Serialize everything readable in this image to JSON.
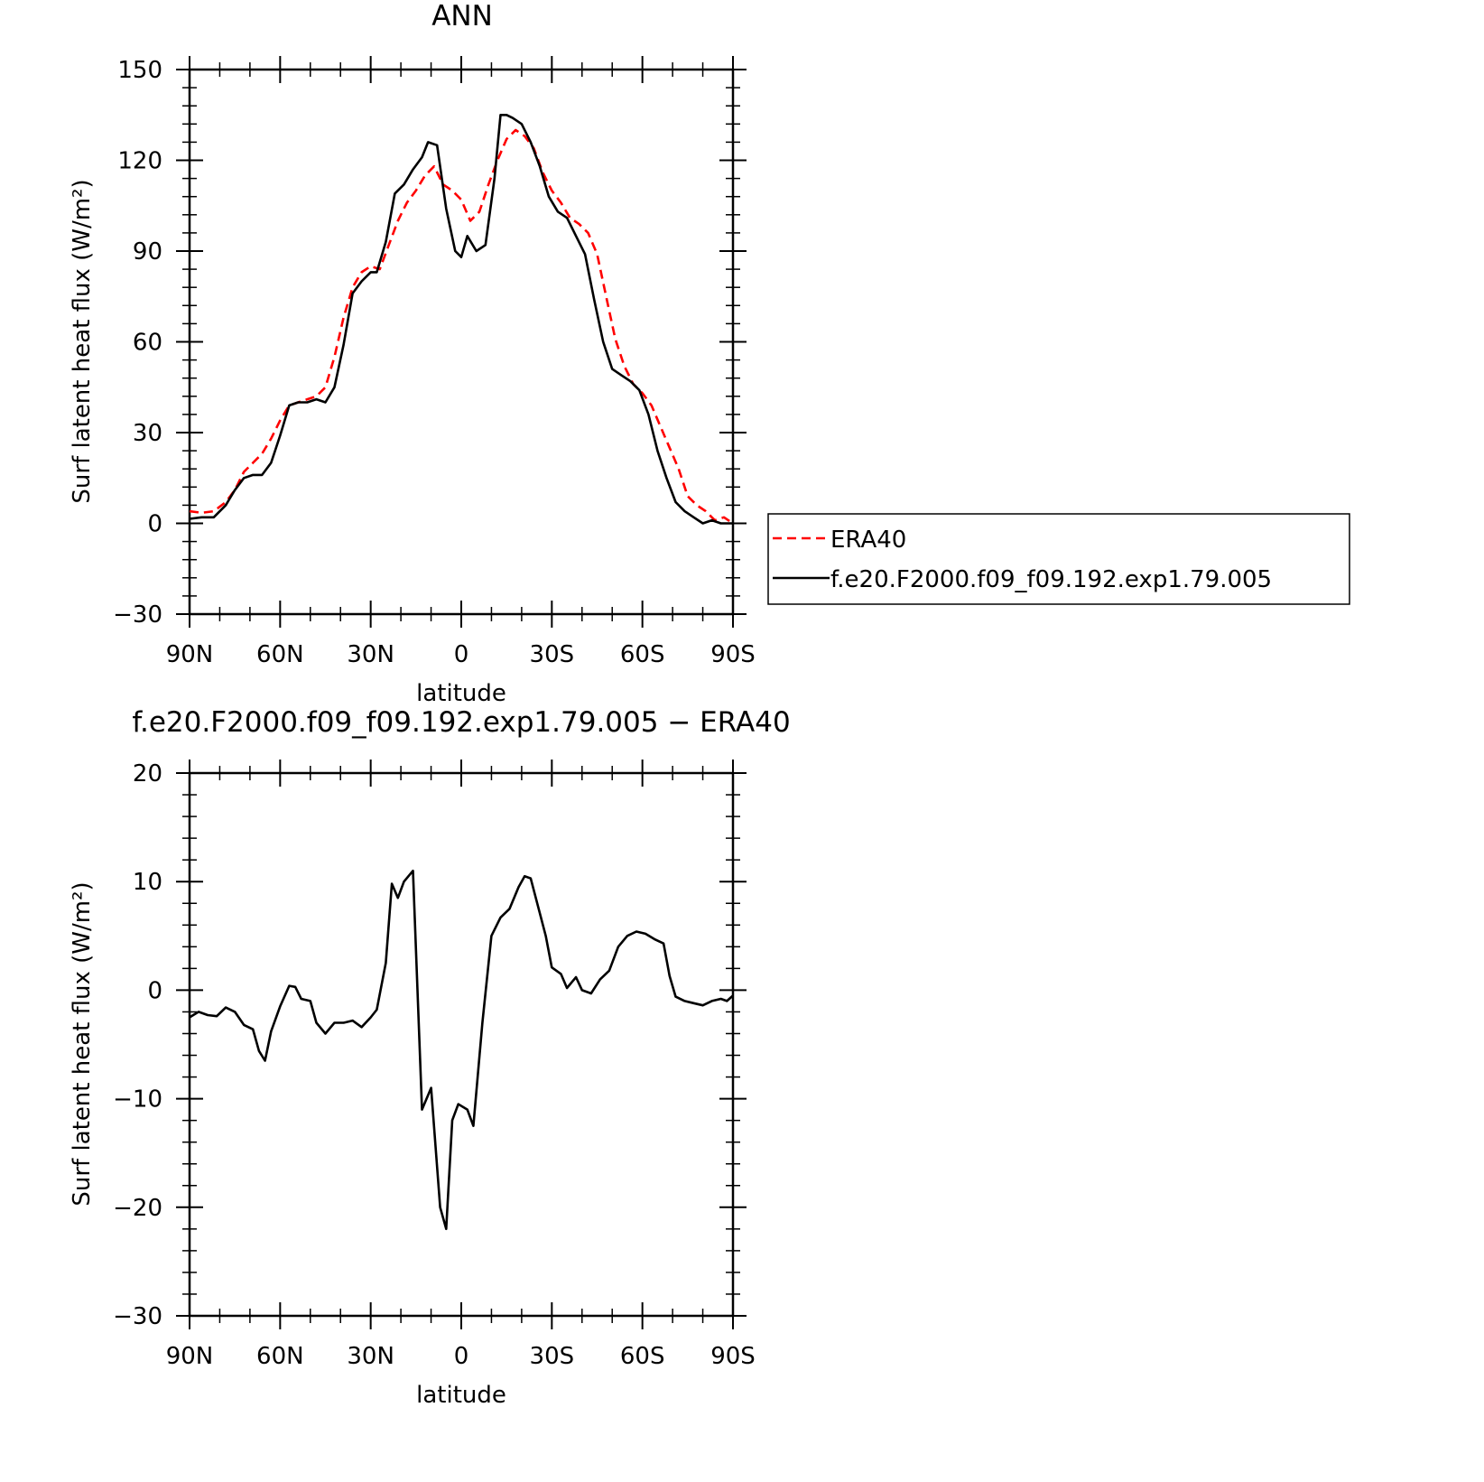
{
  "chart_data": [
    {
      "type": "line",
      "title": "ANN",
      "xlabel": "latitude",
      "ylabel": "Surf latent heat flux (W/m²)",
      "xlim": [
        90,
        -90
      ],
      "ylim": [
        -30,
        150
      ],
      "yticks": [
        150,
        120,
        90,
        60,
        30,
        0,
        -30
      ],
      "ytick_labels": [
        "150",
        "120",
        "90",
        "60",
        "30",
        "0",
        "−30"
      ],
      "xticks": [
        90,
        60,
        30,
        0,
        -30,
        -60,
        -90
      ],
      "xtick_labels": [
        "90N",
        "60N",
        "30N",
        "0",
        "30S",
        "60S",
        "90S"
      ],
      "legend": {
        "placement": "right",
        "entries": [
          "ERA40",
          "f.e20.F2000.f09_f09.192.exp1.79.005"
        ]
      },
      "series": [
        {
          "name": "ERA40",
          "color": "#ff0000",
          "style": "dashed",
          "x": [
            90,
            86,
            82,
            78,
            75,
            72,
            69,
            66,
            63,
            60,
            57,
            54,
            51,
            48,
            45,
            42,
            39,
            36,
            33,
            30,
            27,
            24,
            21,
            18,
            15,
            12,
            9,
            6,
            3,
            0,
            -3,
            -6,
            -9,
            -12,
            -15,
            -18,
            -21,
            -24,
            -27,
            -30,
            -33,
            -36,
            -39,
            -42,
            -45,
            -48,
            -51,
            -54,
            -57,
            -60,
            -63,
            -66,
            -69,
            -72,
            -75,
            -78,
            -81,
            -84,
            -87,
            -90
          ],
          "y": [
            4,
            3.5,
            4,
            7,
            11,
            17,
            20,
            23,
            28,
            34,
            39,
            40,
            41,
            42,
            45,
            55,
            68,
            78,
            83,
            85,
            84,
            92,
            100,
            106,
            110,
            115,
            118,
            112,
            110,
            107,
            100,
            103,
            112,
            120,
            127,
            130,
            128,
            124,
            116,
            110,
            106,
            101,
            99,
            96,
            89,
            75,
            61,
            52,
            46,
            43,
            39,
            32,
            25,
            18,
            9,
            6,
            4,
            1,
            2,
            0
          ]
        },
        {
          "name": "f.e20.F2000.f09_f09.192.exp1.79.005",
          "color": "#000000",
          "style": "solid",
          "x": [
            90,
            86,
            82,
            78,
            75,
            72,
            69,
            66,
            63,
            60,
            57,
            54,
            51,
            48,
            45,
            42,
            39,
            36,
            33,
            30,
            28,
            25,
            22,
            19,
            16,
            13,
            11,
            8,
            5,
            2,
            0,
            -2,
            -5,
            -8,
            -11,
            -13,
            -15,
            -17,
            -20,
            -23,
            -26,
            -29,
            -32,
            -35,
            -38,
            -41,
            -44,
            -47,
            -50,
            -53,
            -56,
            -59,
            -62,
            -65,
            -68,
            -71,
            -74,
            -77,
            -80,
            -83,
            -86,
            -90
          ],
          "y": [
            1.5,
            2,
            2,
            6,
            11,
            15,
            16,
            16,
            20,
            29,
            39,
            40,
            40,
            41,
            40,
            45,
            59,
            76,
            80,
            83,
            83,
            93,
            109,
            112,
            117,
            121,
            126,
            125,
            104,
            90,
            88,
            95,
            90,
            92,
            114,
            135,
            135,
            134,
            132,
            126,
            118,
            108,
            103,
            101,
            95,
            89,
            74,
            60,
            51,
            49,
            47,
            44,
            36,
            24,
            15,
            7,
            4,
            2,
            0,
            1,
            0,
            0
          ]
        }
      ]
    },
    {
      "type": "line",
      "title": "f.e20.F2000.f09_f09.192.exp1.79.005 − ERA40",
      "xlabel": "latitude",
      "ylabel": "Surf latent heat flux (W/m²)",
      "xlim": [
        90,
        -90
      ],
      "ylim": [
        -30,
        20
      ],
      "yticks": [
        20,
        10,
        0,
        -10,
        -20,
        -30
      ],
      "ytick_labels": [
        "20",
        "10",
        "0",
        "−10",
        "−20",
        "−30"
      ],
      "xticks": [
        90,
        60,
        30,
        0,
        -30,
        -60,
        -90
      ],
      "xtick_labels": [
        "90N",
        "60N",
        "30N",
        "0",
        "30S",
        "60S",
        "90S"
      ],
      "series": [
        {
          "color": "#000000",
          "style": "solid",
          "x": [
            90,
            87,
            84,
            81,
            78,
            75,
            72,
            69,
            67,
            65,
            63,
            60,
            57,
            55,
            53,
            50,
            48,
            45,
            42,
            39,
            36,
            33,
            30,
            28,
            25,
            23,
            21,
            19,
            16,
            13,
            10,
            7,
            5,
            3,
            1,
            -2,
            -4,
            -7,
            -10,
            -13,
            -16,
            -19,
            -21,
            -23,
            -26,
            -28,
            -30,
            -33,
            -35,
            -38,
            -40,
            -43,
            -46,
            -49,
            -52,
            -55,
            -58,
            -61,
            -64,
            -67,
            -69,
            -71,
            -74,
            -77,
            -80,
            -83,
            -86,
            -88,
            -90
          ],
          "y": [
            -2.5,
            -2,
            -2.3,
            -2.4,
            -1.6,
            -2,
            -3.2,
            -3.6,
            -5.6,
            -6.5,
            -3.8,
            -1.5,
            0.4,
            0.3,
            -0.8,
            -1,
            -3,
            -4,
            -3,
            -3,
            -2.8,
            -3.4,
            -2.5,
            -1.8,
            2.5,
            9.8,
            8.5,
            10,
            11,
            -11,
            -9,
            -20,
            -22,
            -12,
            -10.5,
            -11,
            -12.5,
            -3,
            5,
            6.7,
            7.5,
            9.5,
            10.5,
            10.3,
            7.1,
            5,
            2.1,
            1.5,
            0.2,
            1.2,
            0,
            -0.3,
            1,
            1.8,
            4,
            5,
            5.4,
            5.2,
            4.7,
            4.3,
            1.3,
            -0.6,
            -1,
            -1.2,
            -1.4,
            -1,
            -0.8,
            -1,
            -0.5
          ]
        }
      ]
    }
  ]
}
